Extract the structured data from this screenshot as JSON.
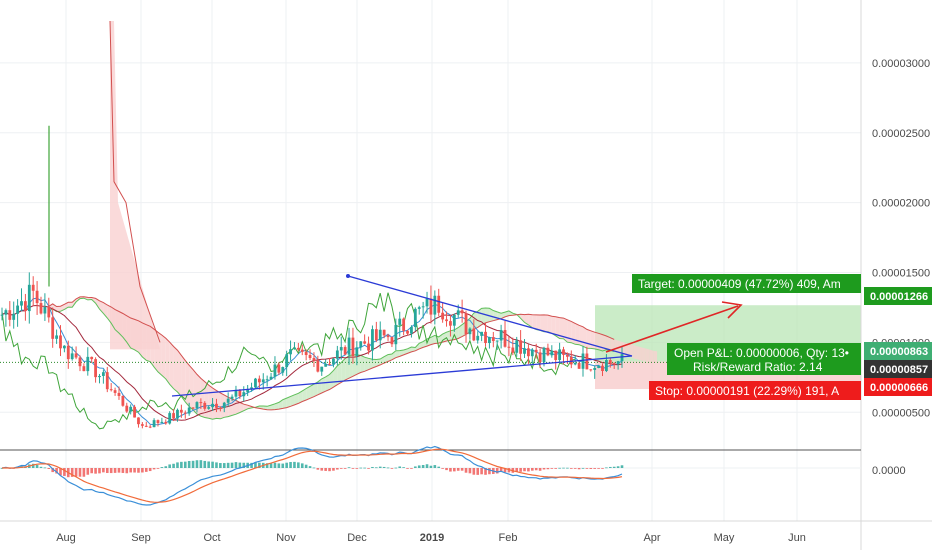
{
  "chart_data": {
    "type": "candlestick",
    "ylim": [
      2.3e-06,
      3.45e-05
    ],
    "grid": true,
    "x_labels": [
      "Aug",
      "Sep",
      "Oct",
      "Nov",
      "Dec",
      "2019",
      "Feb",
      "Apr",
      "May",
      "Jun"
    ],
    "y_ticks": [
      "0.00003000",
      "0.00002500",
      "0.00002000",
      "0.00001500",
      "0.00001000",
      "0.00000500"
    ],
    "price_tags": {
      "target": "0.00001266",
      "entry": "0.00000863",
      "current": "0.00000857",
      "stop": "0.00000666"
    },
    "position": {
      "target_label": "Target: 0.00000409 (47.72%) 409, Am",
      "pl_label": "Open P&L: 0.00000006, Qty: 13•",
      "rr_label": "Risk/Reward Ratio: 2.14",
      "stop_label": "Stop: 0.00000191 (22.29%) 191, A"
    },
    "macd": {
      "zero_label": "0.0000",
      "ylim": [
        -1.3e-06,
        4e-07
      ]
    },
    "colors": {
      "up": "#26a69a",
      "down": "#ef5350",
      "target_zone": "#b9e6b5",
      "stop_zone": "#f7c8c8",
      "trendline": "#2b3bd6",
      "arrow": "#e02626",
      "target_tag": "#1e9b1e",
      "entry_tag": "#3fae73",
      "current_tag": "#333333",
      "stop_tag": "#ee1c1c",
      "macd_line": "#3a8fd8",
      "signal_line": "#f16b3a"
    }
  }
}
